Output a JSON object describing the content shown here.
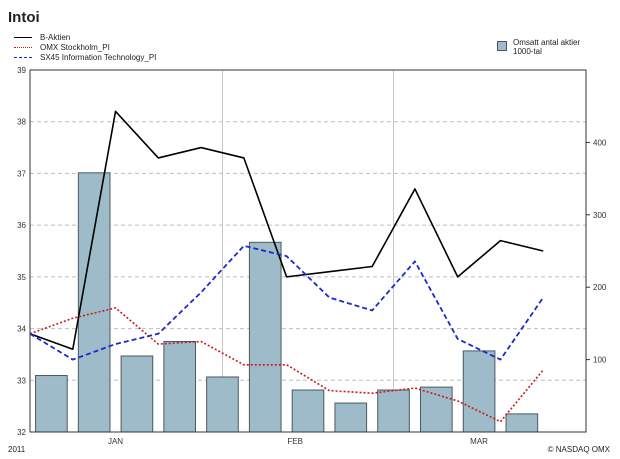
{
  "title": "Intoi",
  "year_label": "2011",
  "copyright": "© NASDAQ OMX",
  "colors": {
    "b_aktien": "#000000",
    "omx": "#cc1a1a",
    "sx45": "#1a2acc",
    "volume_bar": "#9dbbc8",
    "bar_border": "#4a5a60",
    "grid": "#bdbdbd"
  },
  "chart_data": {
    "type": "line",
    "points": 13,
    "month_labels": [
      {
        "label": "JAN",
        "index": 2
      },
      {
        "label": "FEB",
        "index": 6.2
      },
      {
        "label": "MAR",
        "index": 10.5
      }
    ],
    "month_separators": [
      4.5,
      8.5
    ],
    "left_axis": {
      "min": 32,
      "max": 39,
      "ticks": [
        "32",
        "33",
        "34",
        "35",
        "36",
        "37",
        "38",
        "39"
      ]
    },
    "right_axis": {
      "min": 0,
      "max": 500,
      "ticks": [
        "100",
        "200",
        "300",
        "400"
      ]
    },
    "series": [
      {
        "name": "B-Aktien",
        "axis": "left",
        "style": "solid",
        "values": [
          33.9,
          33.6,
          38.2,
          37.3,
          37.5,
          37.3,
          35.0,
          35.1,
          35.2,
          36.7,
          35.0,
          35.7,
          35.5
        ]
      },
      {
        "name": "OMX Stockholm_PI",
        "axis": "left",
        "style": "dotted",
        "values": [
          33.9,
          34.2,
          34.4,
          33.7,
          33.75,
          33.3,
          33.3,
          32.8,
          32.75,
          32.85,
          32.6,
          32.2,
          33.2
        ]
      },
      {
        "name": "SX45 Information Technology_PI",
        "axis": "left",
        "style": "dashed",
        "values": [
          33.9,
          33.4,
          33.7,
          33.9,
          34.7,
          35.6,
          35.4,
          34.6,
          34.35,
          35.3,
          33.8,
          33.4,
          34.6
        ]
      }
    ],
    "volume": {
      "name": "Omsatt antal aktier",
      "name_line2": "1000-tal",
      "values": [
        78,
        358,
        105,
        125,
        76,
        262,
        58,
        40,
        58,
        62,
        112,
        25
      ]
    }
  }
}
